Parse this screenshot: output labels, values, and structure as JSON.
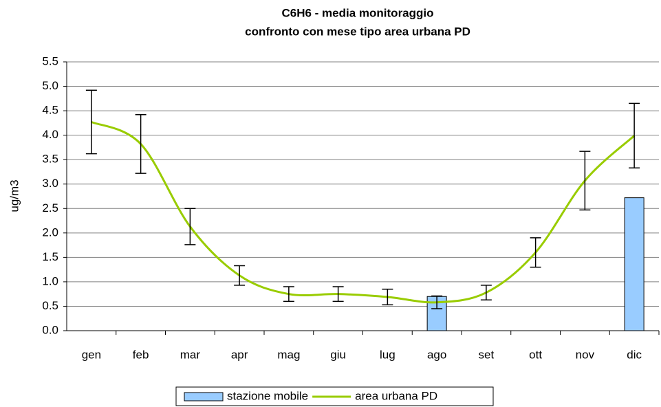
{
  "chart_data": {
    "type": "bar+line",
    "title": [
      "C6H6 -  media monitoraggio",
      "confronto con mese tipo area urbana PD"
    ],
    "y_label": "ug/m3",
    "categories": [
      "gen",
      "feb",
      "mar",
      "apr",
      "mag",
      "giu",
      "lug",
      "ago",
      "set",
      "ott",
      "nov",
      "dic"
    ],
    "series": [
      {
        "name": "stazione mobile",
        "type": "bar",
        "color": "#99ccff",
        "values": [
          null,
          null,
          null,
          null,
          null,
          null,
          null,
          0.7,
          null,
          null,
          null,
          2.72
        ]
      },
      {
        "name": "area urbana PD",
        "type": "line",
        "color": "#99cc00",
        "values": [
          4.27,
          3.82,
          2.13,
          1.13,
          0.75,
          0.75,
          0.69,
          0.58,
          0.78,
          1.6,
          3.07,
          3.99
        ],
        "errors": [
          0.65,
          0.6,
          0.37,
          0.2,
          0.15,
          0.15,
          0.16,
          0.13,
          0.15,
          0.3,
          0.6,
          0.66
        ]
      }
    ],
    "ylim": [
      0,
      5.5
    ],
    "yticks": [
      {
        "value": 0,
        "label": "0.0"
      },
      0.5,
      {
        "value": 1,
        "label": "1.0"
      },
      1.5,
      {
        "value": 2,
        "label": "2.0"
      },
      2.5,
      {
        "value": 3,
        "label": "3.0"
      },
      3.5,
      {
        "value": 4,
        "label": "4.0"
      },
      4.5,
      {
        "value": 5,
        "label": "5.0"
      },
      5.5
    ],
    "grid": true,
    "legend": "bottom"
  }
}
